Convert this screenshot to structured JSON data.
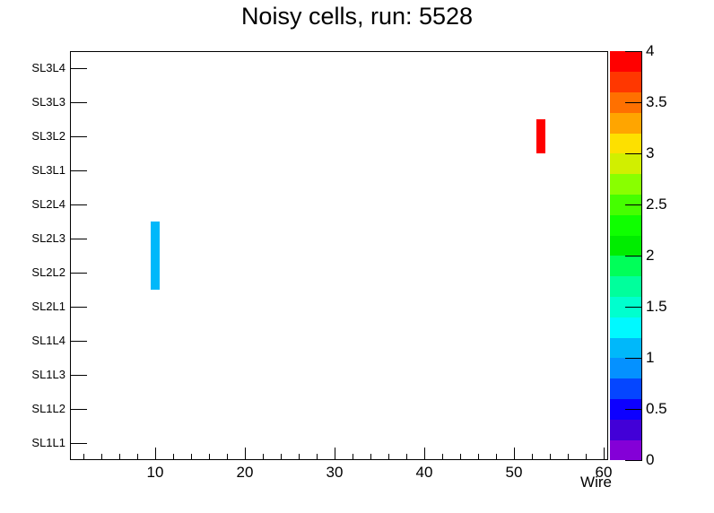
{
  "chart_data": {
    "type": "heatmap",
    "title": "Noisy cells, run: 5528",
    "xlabel": "Wire",
    "x_range": [
      0.5,
      60.5
    ],
    "x_major_ticks": [
      10,
      20,
      30,
      40,
      50,
      60
    ],
    "x_minor_tick_step": 2,
    "y_categories_top_to_bottom": [
      "SL3L4",
      "SL3L3",
      "SL3L2",
      "SL3L1",
      "SL2L4",
      "SL2L3",
      "SL2L2",
      "SL2L1",
      "SL1L4",
      "SL1L3",
      "SL1L2",
      "SL1L1"
    ],
    "z_range": [
      0,
      4
    ],
    "z_ticks": [
      0,
      0.5,
      1,
      1.5,
      2,
      2.5,
      3,
      3.5,
      4
    ],
    "z_tick_labels": [
      "0",
      "0.5",
      "1",
      "1.5",
      "2",
      "2.5",
      "3",
      "3.5",
      "4"
    ],
    "palette_bottom_to_top": [
      "#8400d7",
      "#4200d7",
      "#0d00ff",
      "#0546ff",
      "#0591ff",
      "#00b8fa",
      "#00f9ff",
      "#00ffce",
      "#00ff9c",
      "#00ff59",
      "#00ed00",
      "#0fff00",
      "#45ff00",
      "#89ff00",
      "#d1ef00",
      "#fde000",
      "#ffa500",
      "#ff7000",
      "#ff3700",
      "#ff0000"
    ],
    "grid": false,
    "legend_position": "right-colorbar",
    "cells": [
      {
        "wire": 10,
        "layer": "SL2L3",
        "value": 1
      },
      {
        "wire": 10,
        "layer": "SL2L2",
        "value": 1
      },
      {
        "wire": 53,
        "layer": "SL3L2",
        "value": 4
      }
    ]
  },
  "colors": {
    "frame": "#000000",
    "background": "#ffffff",
    "low_cell": "#00b8fa",
    "high_cell": "#ff0000"
  }
}
